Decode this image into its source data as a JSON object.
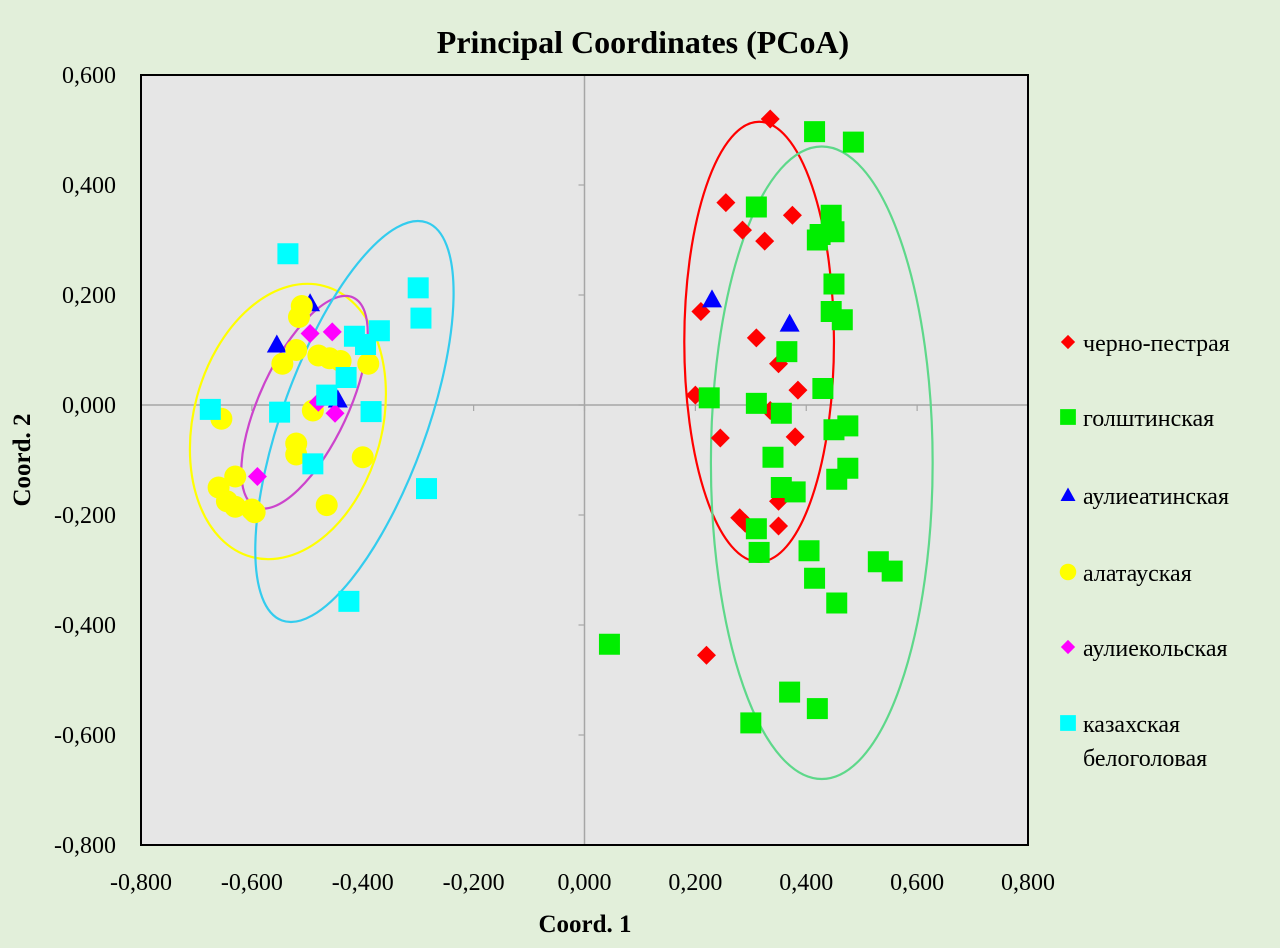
{
  "chart_data": {
    "type": "scatter",
    "title": "Principal Coordinates (PCoA)",
    "xlabel": "Coord. 1",
    "ylabel": "Coord. 2",
    "xlim": [
      -0.8,
      0.8
    ],
    "ylim": [
      -0.8,
      0.6
    ],
    "xticks": [
      -0.8,
      -0.6,
      -0.4,
      -0.2,
      0.0,
      0.2,
      0.4,
      0.6,
      0.8
    ],
    "yticks": [
      -0.8,
      -0.6,
      -0.4,
      -0.2,
      0.0,
      0.2,
      0.4,
      0.6
    ],
    "xtick_labels": [
      "-0,800",
      "-0,600",
      "-0,400",
      "-0,200",
      "0,000",
      "0,200",
      "0,400",
      "0,600",
      "0,800"
    ],
    "ytick_labels": [
      "-0,800",
      "-0,600",
      "-0,400",
      "-0,200",
      "0,000",
      "0,200",
      "0,400",
      "0,600"
    ],
    "grid": false,
    "plot_background": "#e6e6e6",
    "legend_position": "right",
    "series": [
      {
        "name": "черно-пестрая",
        "marker": "diamond",
        "color": "#ff0000",
        "points": [
          [
            0.335,
            0.52
          ],
          [
            0.255,
            0.368
          ],
          [
            0.375,
            0.345
          ],
          [
            0.285,
            0.318
          ],
          [
            0.325,
            0.298
          ],
          [
            0.21,
            0.17
          ],
          [
            0.31,
            0.122
          ],
          [
            0.35,
            0.075
          ],
          [
            0.385,
            0.027
          ],
          [
            0.2,
            0.018
          ],
          [
            0.335,
            -0.01
          ],
          [
            0.245,
            -0.06
          ],
          [
            0.38,
            -0.058
          ],
          [
            0.35,
            -0.175
          ],
          [
            0.28,
            -0.205
          ],
          [
            0.29,
            -0.215
          ],
          [
            0.35,
            -0.22
          ],
          [
            0.22,
            -0.455
          ]
        ]
      },
      {
        "name": "голштинская",
        "marker": "square",
        "color": "#00ee00",
        "points": [
          [
            0.415,
            0.497
          ],
          [
            0.485,
            0.478
          ],
          [
            0.31,
            0.36
          ],
          [
            0.445,
            0.345
          ],
          [
            0.425,
            0.31
          ],
          [
            0.45,
            0.315
          ],
          [
            0.42,
            0.3
          ],
          [
            0.45,
            0.22
          ],
          [
            0.445,
            0.17
          ],
          [
            0.465,
            0.155
          ],
          [
            0.365,
            0.097
          ],
          [
            0.43,
            0.03
          ],
          [
            0.225,
            0.013
          ],
          [
            0.31,
            0.003
          ],
          [
            0.355,
            -0.015
          ],
          [
            0.475,
            -0.038
          ],
          [
            0.45,
            -0.045
          ],
          [
            0.475,
            -0.115
          ],
          [
            0.455,
            -0.135
          ],
          [
            0.34,
            -0.095
          ],
          [
            0.355,
            -0.15
          ],
          [
            0.38,
            -0.158
          ],
          [
            0.31,
            -0.225
          ],
          [
            0.315,
            -0.268
          ],
          [
            0.405,
            -0.265
          ],
          [
            0.415,
            -0.315
          ],
          [
            0.53,
            -0.285
          ],
          [
            0.555,
            -0.302
          ],
          [
            0.455,
            -0.36
          ],
          [
            0.045,
            -0.435
          ],
          [
            0.37,
            -0.522
          ],
          [
            0.42,
            -0.552
          ],
          [
            0.3,
            -0.578
          ]
        ]
      },
      {
        "name": "аулиеатинская",
        "marker": "triangle",
        "color": "#0000ff",
        "points": [
          [
            0.23,
            0.192
          ],
          [
            0.37,
            0.148
          ],
          [
            -0.555,
            0.11
          ],
          [
            -0.495,
            0.185
          ],
          [
            -0.445,
            0.01
          ]
        ]
      },
      {
        "name": "алатауская",
        "marker": "circle",
        "color": "#ffff00",
        "points": [
          [
            -0.515,
            0.16
          ],
          [
            -0.51,
            0.18
          ],
          [
            -0.52,
            0.1
          ],
          [
            -0.545,
            0.075
          ],
          [
            -0.48,
            0.09
          ],
          [
            -0.46,
            0.085
          ],
          [
            -0.44,
            0.08
          ],
          [
            -0.39,
            0.075
          ],
          [
            -0.655,
            -0.025
          ],
          [
            -0.49,
            -0.01
          ],
          [
            -0.52,
            -0.07
          ],
          [
            -0.52,
            -0.09
          ],
          [
            -0.4,
            -0.095
          ],
          [
            -0.63,
            -0.13
          ],
          [
            -0.66,
            -0.15
          ],
          [
            -0.645,
            -0.175
          ],
          [
            -0.63,
            -0.185
          ],
          [
            -0.6,
            -0.19
          ],
          [
            -0.595,
            -0.195
          ],
          [
            -0.465,
            -0.182
          ]
        ]
      },
      {
        "name": "аулиекольская",
        "marker": "diamond",
        "color": "#ff00ff",
        "points": [
          [
            -0.495,
            0.13
          ],
          [
            -0.455,
            0.133
          ],
          [
            -0.48,
            0.005
          ],
          [
            -0.45,
            -0.015
          ],
          [
            -0.59,
            -0.13
          ]
        ]
      },
      {
        "name": "казахская белоголовая",
        "legend_lines": [
          "казахская",
          "белоголовая"
        ],
        "marker": "square",
        "color": "#00ffff",
        "points": [
          [
            -0.535,
            0.275
          ],
          [
            -0.3,
            0.213
          ],
          [
            -0.295,
            0.158
          ],
          [
            -0.415,
            0.125
          ],
          [
            -0.37,
            0.135
          ],
          [
            -0.395,
            0.11
          ],
          [
            -0.43,
            0.05
          ],
          [
            -0.465,
            0.018
          ],
          [
            -0.675,
            -0.008
          ],
          [
            -0.55,
            -0.013
          ],
          [
            -0.385,
            -0.012
          ],
          [
            -0.49,
            -0.107
          ],
          [
            -0.285,
            -0.152
          ],
          [
            -0.425,
            -0.357
          ]
        ]
      }
    ],
    "ellipses": [
      {
        "color": "#ff0000",
        "center": [
          0.315,
          0.115
        ],
        "rx": 0.135,
        "ry": 0.4,
        "angle_deg": 0
      },
      {
        "color": "#5ed88a",
        "center": [
          0.428,
          -0.105
        ],
        "rx": 0.2,
        "ry": 0.575,
        "angle_deg": 0
      },
      {
        "color": "#ffff00",
        "center": [
          -0.535,
          -0.03
        ],
        "rx": 0.17,
        "ry": 0.255,
        "angle_deg": 15
      },
      {
        "color": "#cc44cc",
        "center": [
          -0.505,
          0.005
        ],
        "rx": 0.08,
        "ry": 0.21,
        "angle_deg": 25
      },
      {
        "color": "#33ccee",
        "center": [
          -0.415,
          -0.03
        ],
        "rx": 0.13,
        "ry": 0.385,
        "angle_deg": 20
      }
    ]
  }
}
